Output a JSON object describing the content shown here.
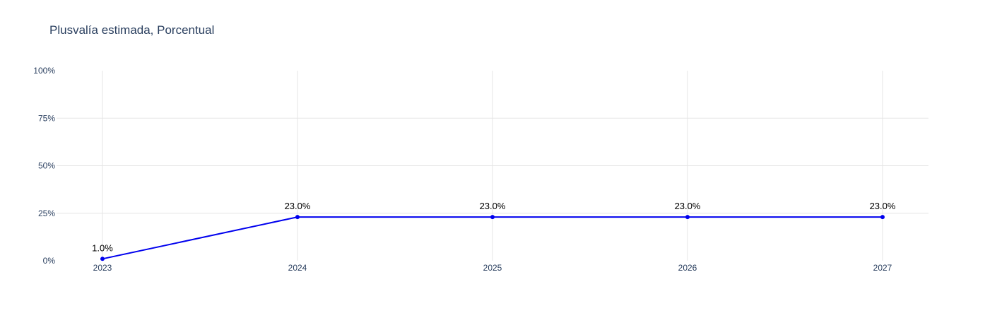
{
  "chart_data": {
    "type": "line",
    "title": "Plusvalía estimada, Porcentual",
    "xlabel": "",
    "ylabel": "",
    "x": [
      "2023",
      "2024",
      "2025",
      "2026",
      "2027"
    ],
    "series": [
      {
        "values": [
          1.0,
          23.0,
          23.0,
          23.0,
          23.0
        ],
        "labels": [
          "1.0%",
          "23.0%",
          "23.0%",
          "23.0%",
          "23.0%"
        ],
        "color": "#0000ee"
      }
    ],
    "ylim": [
      0,
      100
    ],
    "yticks": [
      0,
      25,
      50,
      75,
      100
    ],
    "ytick_labels": [
      "0%",
      "25%",
      "50%",
      "75%",
      "100%"
    ],
    "grid": true,
    "legend": "none"
  },
  "colors": {
    "grid": "#e5e5e5",
    "axis_text": "#2a3f5f",
    "line": "#0000ee"
  }
}
